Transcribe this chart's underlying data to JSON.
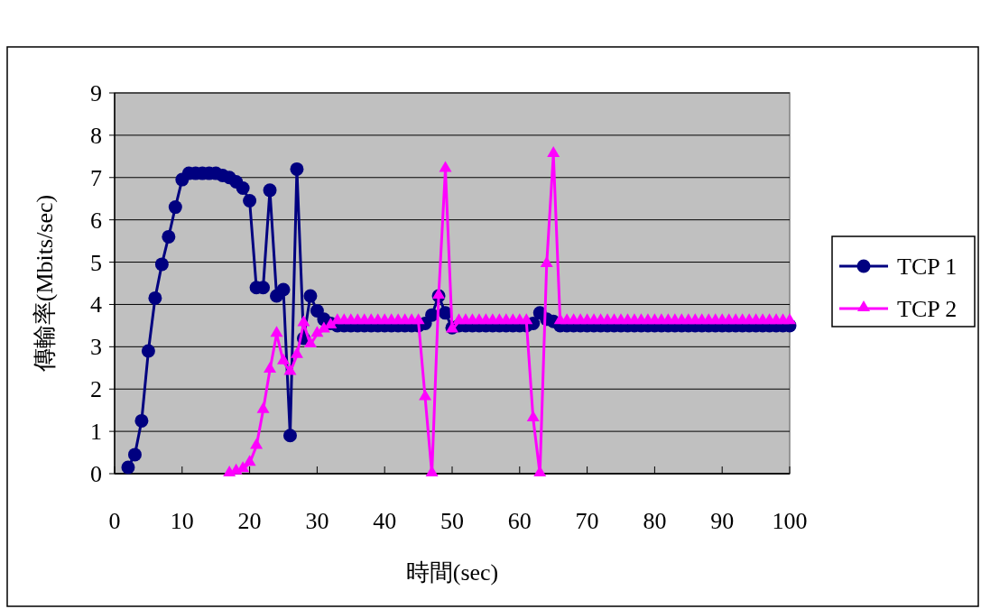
{
  "chart_data": {
    "type": "line",
    "xlabel": "時間(sec)",
    "ylabel": "傳輸率(Mbits/sec)",
    "x": [
      2,
      3,
      4,
      5,
      6,
      7,
      8,
      9,
      10,
      11,
      12,
      13,
      14,
      15,
      16,
      17,
      18,
      19,
      20,
      21,
      22,
      23,
      24,
      25,
      26,
      27,
      28,
      29,
      30,
      31,
      32,
      33,
      34,
      35,
      36,
      37,
      38,
      39,
      40,
      41,
      42,
      43,
      44,
      45,
      46,
      47,
      48,
      49,
      50,
      51,
      52,
      53,
      54,
      55,
      56,
      57,
      58,
      59,
      60,
      61,
      62,
      63,
      64,
      65,
      66,
      67,
      68,
      69,
      70,
      71,
      72,
      73,
      74,
      75,
      76,
      77,
      78,
      79,
      80,
      81,
      82,
      83,
      84,
      85,
      86,
      87,
      88,
      89,
      90,
      91,
      92,
      93,
      94,
      95,
      96,
      97,
      98,
      99,
      100
    ],
    "series": [
      {
        "name": "TCP 1",
        "color": "#000080",
        "marker": "circle",
        "values": [
          0.15,
          0.45,
          1.25,
          2.9,
          4.15,
          4.95,
          5.6,
          6.3,
          6.95,
          7.1,
          7.1,
          7.1,
          7.1,
          7.1,
          7.05,
          7,
          6.9,
          6.75,
          6.45,
          4.4,
          4.4,
          6.7,
          4.2,
          4.35,
          0.9,
          7.2,
          3.2,
          4.2,
          3.85,
          3.65,
          3.55,
          3.5,
          3.5,
          3.5,
          3.5,
          3.5,
          3.5,
          3.5,
          3.5,
          3.5,
          3.5,
          3.5,
          3.5,
          3.5,
          3.55,
          3.75,
          4.2,
          3.8,
          3.45,
          3.5,
          3.5,
          3.5,
          3.5,
          3.5,
          3.5,
          3.5,
          3.5,
          3.5,
          3.5,
          3.5,
          3.55,
          3.8,
          3.65,
          3.6,
          3.5,
          3.5,
          3.5,
          3.5,
          3.5,
          3.5,
          3.5,
          3.5,
          3.5,
          3.5,
          3.5,
          3.5,
          3.5,
          3.5,
          3.5,
          3.5,
          3.5,
          3.5,
          3.5,
          3.5,
          3.5,
          3.5,
          3.5,
          3.5,
          3.5,
          3.5,
          3.5,
          3.5,
          3.5,
          3.5,
          3.5,
          3.5,
          3.5,
          3.5,
          3.5
        ]
      },
      {
        "name": "TCP 2",
        "color": "#ff00ff",
        "marker": "triangle",
        "values": [
          null,
          null,
          null,
          null,
          null,
          null,
          null,
          null,
          null,
          null,
          null,
          null,
          null,
          null,
          null,
          0,
          0.05,
          0.1,
          0.25,
          0.65,
          1.5,
          2.45,
          3.3,
          2.65,
          2.4,
          2.8,
          3.55,
          3.05,
          3.3,
          3.4,
          3.5,
          3.6,
          3.6,
          3.6,
          3.6,
          3.6,
          3.6,
          3.6,
          3.6,
          3.6,
          3.6,
          3.6,
          3.6,
          3.6,
          1.8,
          0,
          4.2,
          7.2,
          3.4,
          3.6,
          3.6,
          3.6,
          3.6,
          3.6,
          3.6,
          3.6,
          3.6,
          3.6,
          3.6,
          3.6,
          1.3,
          0,
          4.95,
          7.55,
          3.6,
          3.6,
          3.6,
          3.6,
          3.6,
          3.6,
          3.6,
          3.6,
          3.6,
          3.6,
          3.6,
          3.6,
          3.6,
          3.6,
          3.6,
          3.6,
          3.6,
          3.6,
          3.6,
          3.6,
          3.6,
          3.6,
          3.6,
          3.6,
          3.6,
          3.6,
          3.6,
          3.6,
          3.6,
          3.6,
          3.6,
          3.6,
          3.6,
          3.6,
          3.6
        ]
      }
    ],
    "xlim": [
      0,
      100
    ],
    "xticks": [
      0,
      10,
      20,
      30,
      40,
      50,
      60,
      70,
      80,
      90,
      100
    ],
    "ylim": [
      0,
      9
    ],
    "yticks": [
      0,
      1,
      2,
      3,
      4,
      5,
      6,
      7,
      8,
      9
    ],
    "grid": "y",
    "legend": "right"
  }
}
